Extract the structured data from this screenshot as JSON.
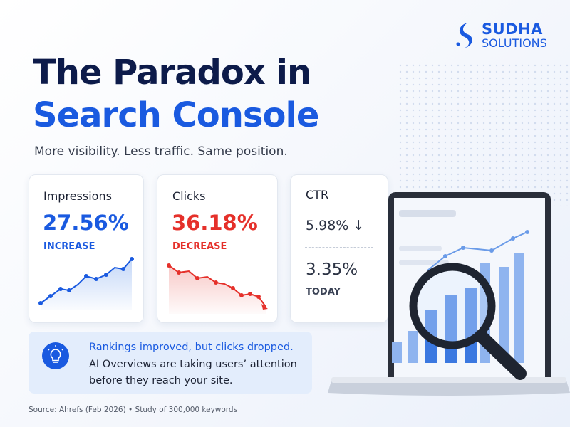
{
  "logo": {
    "name": "SUDHA",
    "suffix": "SOLUTIONS"
  },
  "header": {
    "title_line1": "The Paradox in",
    "title_line2": "Search Console",
    "subtitle": "More visibility. Less traffic. Same position."
  },
  "cards": [
    {
      "label": "Impressions",
      "value": "27.56%",
      "note": "INCREASE"
    },
    {
      "label": "Clicks",
      "value": "36.18%",
      "note": "DECREASE"
    },
    {
      "label": "CTR",
      "value": "5.98% ↓",
      "value2": "3.35%",
      "note": "TODAY"
    }
  ],
  "callout": {
    "line1": "Rankings improved, but clicks dropped.",
    "line2": "AI Overviews are taking users’ attention",
    "line3": "before they reach your site."
  },
  "footer": {
    "source": "Source: Ahrefs (Feb 2026) • Study of 300,000 keywords"
  }
}
